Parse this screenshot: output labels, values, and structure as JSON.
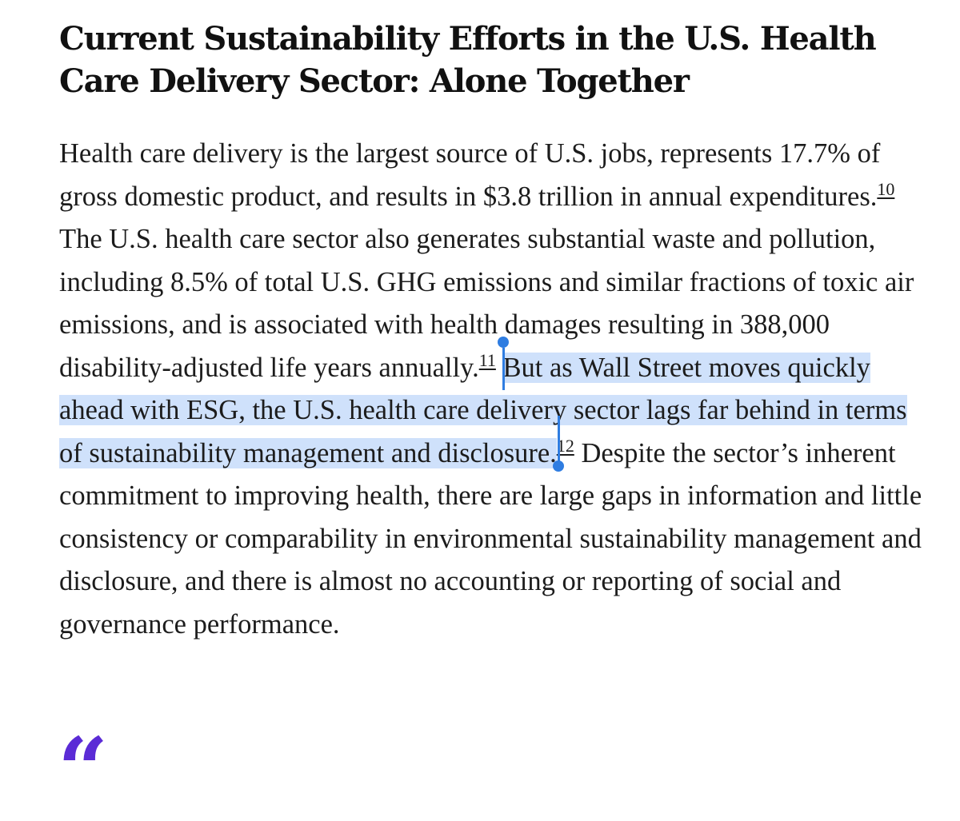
{
  "article": {
    "title": "Current Sustainability Efforts in the U.S. Health Care Delivery Sector: Alone Together",
    "paragraph": {
      "part1": "Health care delivery is the largest source of U.S. jobs, represents 17.7% of gross domestic product, and results in $3.8 trillion in annual expenditures.",
      "fn1": "10",
      "part2": " The U.S. health care sector also generates substantial waste and pollution, including 8.5% of total U.S. GHG emissions and similar fractions of toxic air emissions, and is associated with health damages resulting in 388,000 disability-adjusted life years annually.",
      "fn2": "11",
      "part3_selected": "But as Wall Street moves quickly ahead with ESG, the U.S. health care delivery sector lags far behind in terms of sustainability management and disclosure.",
      "fn3": "12",
      "part4": " Despite the sector’s inherent commitment to improving health, there are large gaps in information and little consistency or comparability in environmental sustainability management and disclosure, and there is almost no accounting or reporting of social and governance performance."
    }
  },
  "pull_quote": {
    "mark": "“",
    "color": "#5b2bd6"
  },
  "selection": {
    "highlight_color": "#cfe1fb",
    "handle_color": "#2f7de1"
  }
}
